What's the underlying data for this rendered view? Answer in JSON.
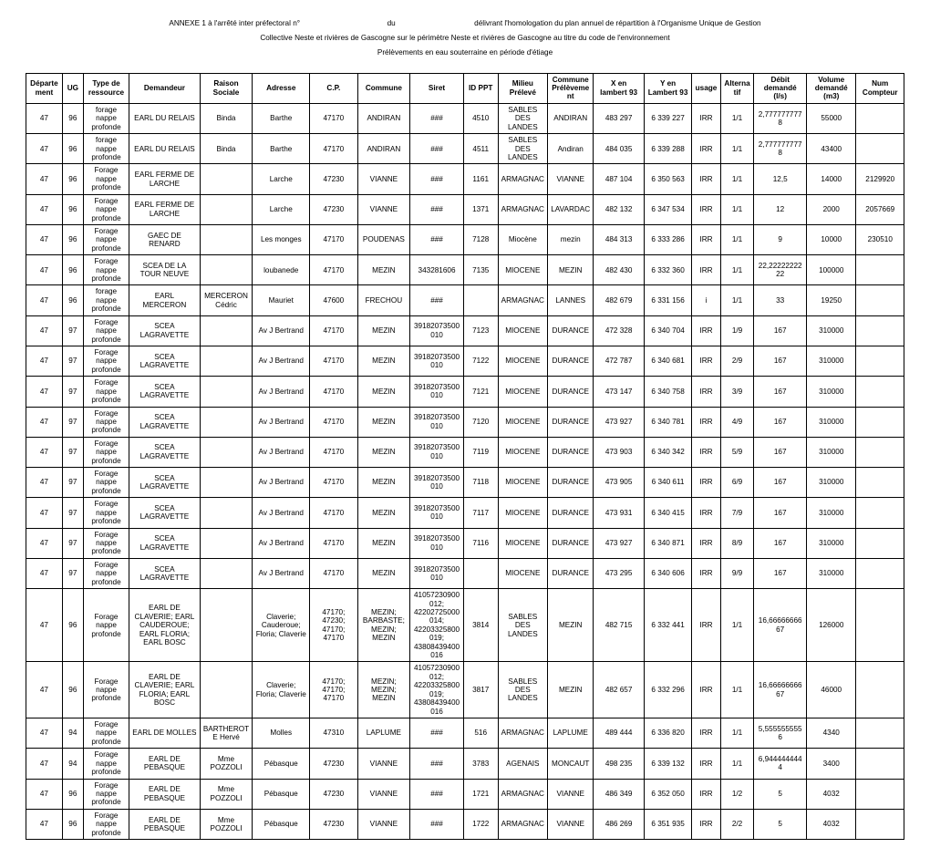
{
  "header": {
    "line1_a": "ANNEXE 1 à l'arrêté inter préfectoral n°",
    "line1_b": "du",
    "line1_c": "délivrant l'homologation du plan annuel de répartition à l'Organisme Unique de Gestion",
    "line2": "Collective Neste et rivières de Gascogne sur le périmètre Neste et rivières de Gascogne au titre du code de l'environnement",
    "line3": "Prélèvements en eau souterraine en période d'étiage"
  },
  "columns": [
    "Département",
    "UG",
    "Type de ressource",
    "Demandeur",
    "Raison Sociale",
    "Adresse",
    "C.P.",
    "Commune",
    "Siret",
    "ID PPT",
    "Milieu Prélevé",
    "Commune Prélèvement",
    "X en lambert 93",
    "Y en Lambert 93",
    "usage",
    "Alternatif",
    "Débit demandé (l/s)",
    "Volume demandé (m3)",
    "Num Compteur"
  ],
  "rows": [
    [
      "47",
      "96",
      "forage nappe profonde",
      "EARL DU RELAIS",
      "Binda",
      "Barthe",
      "47170",
      "ANDIRAN",
      "###",
      "4510",
      "SABLES DES LANDES",
      "ANDIRAN",
      "483 297",
      "6 339 227",
      "IRR",
      "1/1",
      "2,7777777778",
      "55000",
      ""
    ],
    [
      "47",
      "96",
      "forage nappe profonde",
      "EARL DU RELAIS",
      "Binda",
      "Barthe",
      "47170",
      "ANDIRAN",
      "###",
      "4511",
      "SABLES DES LANDES",
      "Andiran",
      "484 035",
      "6 339 288",
      "IRR",
      "1/1",
      "2,7777777778",
      "43400",
      ""
    ],
    [
      "47",
      "96",
      "Forage nappe profonde",
      "EARL FERME DE LARCHE",
      "",
      "Larche",
      "47230",
      "VIANNE",
      "###",
      "1161",
      "ARMAGNAC",
      "VIANNE",
      "487 104",
      "6 350 563",
      "IRR",
      "1/1",
      "12,5",
      "14000",
      "2129920"
    ],
    [
      "47",
      "96",
      "Forage nappe profonde",
      "EARL FERME DE LARCHE",
      "",
      "Larche",
      "47230",
      "VIANNE",
      "###",
      "1371",
      "ARMAGNAC",
      "LAVARDAC",
      "482 132",
      "6 347 534",
      "IRR",
      "1/1",
      "12",
      "2000",
      "2057669"
    ],
    [
      "47",
      "96",
      "Forage nappe profonde",
      "GAEC DE RENARD",
      "",
      "Les monges",
      "47170",
      "POUDENAS",
      "###",
      "7128",
      "Miocène",
      "mezin",
      "484 313",
      "6 333 286",
      "IRR",
      "1/1",
      "9",
      "10000",
      "230510"
    ],
    [
      "47",
      "96",
      "Forage nappe profonde",
      "SCEA DE LA TOUR NEUVE",
      "",
      "loubanede",
      "47170",
      "MEZIN",
      "343281606",
      "7135",
      "MIOCENE",
      "MEZIN",
      "482 430",
      "6 332 360",
      "IRR",
      "1/1",
      "22,2222222222",
      "100000",
      ""
    ],
    [
      "47",
      "96",
      "forage nappe profonde",
      "EARL MERCERON",
      "MERCERON Cédric",
      "Mauriet",
      "47600",
      "FRECHOU",
      "###",
      "",
      "ARMAGNAC",
      "LANNES",
      "482 679",
      "6 331 156",
      "i",
      "1/1",
      "33",
      "19250",
      ""
    ],
    [
      "47",
      "97",
      "Forage nappe profonde",
      "SCEA LAGRAVETTE",
      "",
      "Av J Bertrand",
      "47170",
      "MEZIN",
      "39182073500010",
      "7123",
      "MIOCENE",
      "DURANCE",
      "472 328",
      "6 340 704",
      "IRR",
      "1/9",
      "167",
      "310000",
      ""
    ],
    [
      "47",
      "97",
      "Forage nappe profonde",
      "SCEA LAGRAVETTE",
      "",
      "Av J Bertrand",
      "47170",
      "MEZIN",
      "39182073500010",
      "7122",
      "MIOCENE",
      "DURANCE",
      "472 787",
      "6 340 681",
      "IRR",
      "2/9",
      "167",
      "310000",
      ""
    ],
    [
      "47",
      "97",
      "Forage nappe profonde",
      "SCEA LAGRAVETTE",
      "",
      "Av J Bertrand",
      "47170",
      "MEZIN",
      "39182073500010",
      "7121",
      "MIOCENE",
      "DURANCE",
      "473 147",
      "6 340 758",
      "IRR",
      "3/9",
      "167",
      "310000",
      ""
    ],
    [
      "47",
      "97",
      "Forage nappe profonde",
      "SCEA LAGRAVETTE",
      "",
      "Av J Bertrand",
      "47170",
      "MEZIN",
      "39182073500010",
      "7120",
      "MIOCENE",
      "DURANCE",
      "473 927",
      "6 340 781",
      "IRR",
      "4/9",
      "167",
      "310000",
      ""
    ],
    [
      "47",
      "97",
      "Forage nappe profonde",
      "SCEA LAGRAVETTE",
      "",
      "Av J Bertrand",
      "47170",
      "MEZIN",
      "39182073500010",
      "7119",
      "MIOCENE",
      "DURANCE",
      "473 903",
      "6 340 342",
      "IRR",
      "5/9",
      "167",
      "310000",
      ""
    ],
    [
      "47",
      "97",
      "Forage nappe profonde",
      "SCEA LAGRAVETTE",
      "",
      "Av J Bertrand",
      "47170",
      "MEZIN",
      "39182073500010",
      "7118",
      "MIOCENE",
      "DURANCE",
      "473 905",
      "6 340 611",
      "IRR",
      "6/9",
      "167",
      "310000",
      ""
    ],
    [
      "47",
      "97",
      "Forage nappe profonde",
      "SCEA LAGRAVETTE",
      "",
      "Av J Bertrand",
      "47170",
      "MEZIN",
      "39182073500010",
      "7117",
      "MIOCENE",
      "DURANCE",
      "473 931",
      "6 340 415",
      "IRR",
      "7/9",
      "167",
      "310000",
      ""
    ],
    [
      "47",
      "97",
      "Forage nappe profonde",
      "SCEA LAGRAVETTE",
      "",
      "Av J Bertrand",
      "47170",
      "MEZIN",
      "39182073500010",
      "7116",
      "MIOCENE",
      "DURANCE",
      "473 927",
      "6 340 871",
      "IRR",
      "8/9",
      "167",
      "310000",
      ""
    ],
    [
      "47",
      "97",
      "Forage nappe profonde",
      "SCEA LAGRAVETTE",
      "",
      "Av J Bertrand",
      "47170",
      "MEZIN",
      "39182073500010",
      "",
      "MIOCENE",
      "DURANCE",
      "473 295",
      "6 340 606",
      "IRR",
      "9/9",
      "167",
      "310000",
      ""
    ],
    [
      "47",
      "96",
      "Forage nappe profonde",
      "EARL DE CLAVERIE; EARL CAUDEROUE; EARL FLORIA; EARL BOSC",
      "",
      "Claverie; Cauderoue; Floria; Claverie",
      "47170; 47230; 47170; 47170",
      "MEZIN; BARBASTE; MEZIN; MEZIN",
      "41057230900012; 42202725000014; 42203325800019; 43808439400016",
      "3814",
      "SABLES DES LANDES",
      "MEZIN",
      "482 715",
      "6 332 441",
      "IRR",
      "1/1",
      "16,6666666667",
      "126000",
      ""
    ],
    [
      "47",
      "96",
      "Forage nappe profonde",
      "EARL DE CLAVERIE; EARL FLORIA; EARL BOSC",
      "",
      "Claverie; Floria; Claverie",
      "47170; 47170; 47170",
      "MEZIN; MEZIN; MEZIN",
      "41057230900012; 42203325800019; 43808439400016",
      "3817",
      "SABLES DES LANDES",
      "MEZIN",
      "482 657",
      "6 332 296",
      "IRR",
      "1/1",
      "16,6666666667",
      "46000",
      ""
    ],
    [
      "47",
      "94",
      "Forage nappe profonde",
      "EARL DE MOLLES",
      "BARTHEROTE Hervé",
      "Molles",
      "47310",
      "LAPLUME",
      "###",
      "516",
      "ARMAGNAC",
      "LAPLUME",
      "489 444",
      "6 336 820",
      "IRR",
      "1/1",
      "5,5555555556",
      "4340",
      ""
    ],
    [
      "47",
      "94",
      "Forage nappe profonde",
      "EARL DE PEBASQUE",
      "Mme POZZOLI",
      "Pébasque",
      "47230",
      "VIANNE",
      "###",
      "3783",
      "AGENAIS",
      "MONCAUT",
      "498 235",
      "6 339 132",
      "IRR",
      "1/1",
      "6,9444444444",
      "3400",
      ""
    ],
    [
      "47",
      "96",
      "Forage nappe profonde",
      "EARL DE PEBASQUE",
      "Mme POZZOLI",
      "Pébasque",
      "47230",
      "VIANNE",
      "###",
      "1721",
      "ARMAGNAC",
      "VIANNE",
      "486 349",
      "6 352 050",
      "IRR",
      "1/2",
      "5",
      "4032",
      ""
    ],
    [
      "47",
      "96",
      "Forage nappe profonde",
      "EARL DE PEBASQUE",
      "Mme POZZOLI",
      "Pébasque",
      "47230",
      "VIANNE",
      "###",
      "1722",
      "ARMAGNAC",
      "VIANNE",
      "486 269",
      "6 351 935",
      "IRR",
      "2/2",
      "5",
      "4032",
      ""
    ]
  ]
}
